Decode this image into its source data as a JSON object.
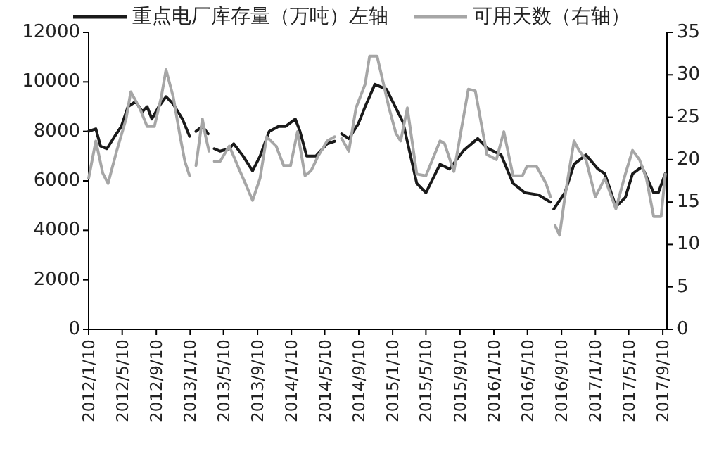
{
  "chart_data": {
    "type": "line",
    "legend": "top",
    "grid": false,
    "marker": "none",
    "line_style": "solid",
    "xlim": [
      "2012-01-10",
      "2017-09-25"
    ],
    "xticks": [
      {
        "value": "2012-01-10",
        "label": "2012/1/10"
      },
      {
        "value": "2012-05-10",
        "label": "2012/5/10"
      },
      {
        "value": "2012-09-10",
        "label": "2012/9/10"
      },
      {
        "value": "2013-01-10",
        "label": "2013/1/10"
      },
      {
        "value": "2013-05-10",
        "label": "2013/5/10"
      },
      {
        "value": "2013-09-10",
        "label": "2013/9/10"
      },
      {
        "value": "2014-01-10",
        "label": "2014/1/10"
      },
      {
        "value": "2014-05-10",
        "label": "2014/5/10"
      },
      {
        "value": "2014-09-10",
        "label": "2014/9/10"
      },
      {
        "value": "2015-01-10",
        "label": "2015/1/10"
      },
      {
        "value": "2015-05-10",
        "label": "2015/5/10"
      },
      {
        "value": "2015-09-10",
        "label": "2015/9/10"
      },
      {
        "value": "2016-01-10",
        "label": "2016/1/10"
      },
      {
        "value": "2016-05-10",
        "label": "2016/5/10"
      },
      {
        "value": "2016-09-10",
        "label": "2016/9/10"
      },
      {
        "value": "2017-01-10",
        "label": "2017/1/10"
      },
      {
        "value": "2017-05-10",
        "label": "2017/5/10"
      },
      {
        "value": "2017-09-10",
        "label": "2017/9/10"
      }
    ],
    "ylim": [
      0,
      12000
    ],
    "yticks": [
      0,
      2000,
      4000,
      6000,
      8000,
      10000,
      12000
    ],
    "y2lim": [
      0,
      35
    ],
    "y2ticks": [
      0,
      5,
      10,
      15,
      20,
      25,
      30,
      35
    ],
    "series": [
      {
        "name": "重点电厂库存量（万吨）左轴",
        "color": "#1a1a1a",
        "axis": "y",
        "x": [
          "2012-01-10",
          "2012-02-05",
          "2012-02-22",
          "2012-03-16",
          "2012-04-13",
          "2012-05-07",
          "2012-05-31",
          "2012-06-27",
          "2012-07-22",
          "2012-08-08",
          "2012-08-25",
          "2012-09-19",
          "2012-10-15",
          "2012-11-10",
          "2012-12-13",
          "2013-01-08",
          "2013-01-20",
          "2013-01-31",
          "2013-02-23",
          "2013-03-16",
          "2013-03-27",
          "2013-04-07",
          "2013-04-28",
          "2013-05-31",
          "2013-06-16",
          "2013-07-20",
          "2013-08-23",
          "2013-09-19",
          "2013-10-22",
          "2013-11-25",
          "2013-12-20",
          "2014-01-24",
          "2014-02-10",
          "2014-03-06",
          "2014-04-08",
          "2014-05-19",
          "2014-06-15",
          "2014-06-28",
          "2014-07-10",
          "2014-08-05",
          "2014-09-08",
          "2014-10-03",
          "2014-11-07",
          "2014-12-19",
          "2015-01-13",
          "2015-02-16",
          "2015-04-07",
          "2015-05-10",
          "2015-06-30",
          "2015-08-03",
          "2015-09-24",
          "2015-11-13",
          "2015-12-16",
          "2016-02-05",
          "2016-03-19",
          "2016-05-01",
          "2016-06-19",
          "2016-08-01",
          "2016-08-07",
          "2016-08-13",
          "2016-09-22",
          "2016-10-25",
          "2016-12-07",
          "2017-01-19",
          "2017-02-13",
          "2017-03-25",
          "2017-04-28",
          "2017-05-24",
          "2017-06-27",
          "2017-08-08",
          "2017-08-25",
          "2017-09-19"
        ],
        "values": [
          8000,
          8100,
          7400,
          7300,
          7800,
          8200,
          9000,
          9200,
          8800,
          9000,
          8500,
          9000,
          9400,
          9100,
          8500,
          7800,
          null,
          8000,
          8200,
          7900,
          null,
          7300,
          7200,
          7300,
          7500,
          7000,
          6400,
          7000,
          8000,
          8200,
          8200,
          8500,
          8000,
          7000,
          7000,
          7500,
          7600,
          null,
          7900,
          7700,
          8300,
          9000,
          9900,
          9700,
          9140,
          8380,
          5900,
          5520,
          6670,
          6480,
          7240,
          7710,
          7330,
          7050,
          5900,
          5520,
          5430,
          5140,
          null,
          4860,
          5520,
          6670,
          7050,
          6480,
          6290,
          4950,
          5330,
          6290,
          6570,
          5520,
          5520,
          6290
        ]
      },
      {
        "name": "可用天数（右轴）",
        "color": "#a6a6a6",
        "axis": "y2",
        "x": [
          "2012-01-10",
          "2012-02-05",
          "2012-03-01",
          "2012-03-20",
          "2012-04-20",
          "2012-05-24",
          "2012-06-10",
          "2012-07-13",
          "2012-08-08",
          "2012-09-03",
          "2012-09-28",
          "2012-10-15",
          "2012-11-10",
          "2012-12-05",
          "2012-12-22",
          "2013-01-08",
          "2013-01-20",
          "2013-01-31",
          "2013-02-23",
          "2013-03-07",
          "2013-03-19",
          "2013-03-27",
          "2013-04-07",
          "2013-04-28",
          "2013-05-31",
          "2013-06-16",
          "2013-07-04",
          "2013-07-28",
          "2013-08-23",
          "2013-09-19",
          "2013-10-13",
          "2013-11-16",
          "2013-12-13",
          "2014-01-07",
          "2014-02-01",
          "2014-02-28",
          "2014-03-22",
          "2014-04-16",
          "2014-05-19",
          "2014-06-15",
          "2014-06-28",
          "2014-07-10",
          "2014-08-05",
          "2014-08-31",
          "2014-10-03",
          "2014-10-19",
          "2014-11-15",
          "2014-12-28",
          "2015-01-22",
          "2015-02-08",
          "2015-03-04",
          "2015-04-07",
          "2015-05-10",
          "2015-06-30",
          "2015-07-16",
          "2015-08-19",
          "2015-10-10",
          "2015-11-04",
          "2015-12-16",
          "2016-01-19",
          "2016-02-15",
          "2016-03-19",
          "2016-04-22",
          "2016-05-08",
          "2016-06-12",
          "2016-07-16",
          "2016-08-01",
          "2016-08-07",
          "2016-08-18",
          "2016-09-03",
          "2016-09-22",
          "2016-10-25",
          "2016-11-12",
          "2016-12-07",
          "2017-01-10",
          "2017-02-13",
          "2017-03-25",
          "2017-04-28",
          "2017-05-24",
          "2017-06-18",
          "2017-07-13",
          "2017-08-08",
          "2017-09-04",
          "2017-09-19"
        ],
        "values": [
          17.8,
          22.2,
          18.4,
          17.2,
          21,
          24.8,
          28,
          26,
          23.9,
          23.9,
          27.4,
          30.6,
          27.4,
          22.7,
          19.8,
          18.1,
          null,
          19.3,
          24.8,
          22.7,
          21,
          null,
          19.8,
          19.8,
          21.6,
          20.4,
          19,
          17.2,
          15.2,
          17.8,
          22.7,
          21.6,
          19.3,
          19.3,
          23.3,
          18.1,
          18.7,
          20.4,
          22.2,
          22.7,
          null,
          22.5,
          21,
          26.1,
          28.9,
          32.2,
          32.2,
          26.1,
          23.1,
          22.2,
          26.1,
          18.3,
          18.1,
          22.2,
          21.9,
          18.6,
          28.3,
          28.1,
          20.6,
          20,
          23.3,
          18.1,
          18.1,
          19.2,
          19.2,
          17.2,
          15.6,
          null,
          12.2,
          11.1,
          15.6,
          22.2,
          21.1,
          20,
          15.6,
          17.8,
          14.2,
          18.3,
          21.1,
          20,
          17.8,
          13.3,
          13.3,
          18.3
        ]
      }
    ]
  }
}
